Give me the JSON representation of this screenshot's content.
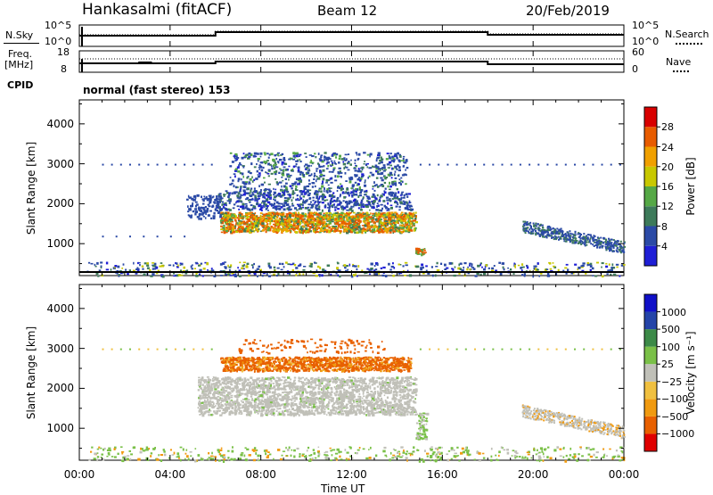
{
  "header": {
    "station": "Hankasalmi (fitACF)",
    "beam": "Beam 12",
    "date": "20/Feb/2019"
  },
  "panels": {
    "nsky": {
      "label": "N.Sky",
      "tick_top": "10^5",
      "tick_bottom": "10^0",
      "right_label": "N.Search",
      "right_tick_top": "10^5",
      "right_tick_bottom": "10^0"
    },
    "freq": {
      "label_1": "Freq.",
      "label_2": "[MHz]",
      "tick_top": "18",
      "tick_bottom": "8",
      "right_label": "Nave",
      "right_tick_top": "60",
      "right_tick_bottom": "0"
    },
    "cpid": {
      "label": "CPID",
      "value": "normal (fast stereo) 153"
    }
  },
  "colors": {
    "power": [
      "#1f1fd6",
      "#2b4aa6",
      "#3d7a5a",
      "#55a846",
      "#c8c800",
      "#f0a000",
      "#e85c00",
      "#d80000"
    ],
    "velocity": [
      "#e00000",
      "#e86000",
      "#f09a10",
      "#f0c040",
      "#c0c0b8",
      "#7ac048",
      "#3c8a48",
      "#2444a8",
      "#1010c8"
    ]
  },
  "chart_data": [
    {
      "type": "heatmap",
      "ylabel": "Slant Range [km]",
      "ylim": [
        200,
        4600
      ],
      "yticks": [
        "1000",
        "2000",
        "3000",
        "4000"
      ],
      "colorbar_label": "Power [dB]",
      "colorbar_ticks": [
        "4",
        "8",
        "12",
        "16",
        "20",
        "24",
        "28"
      ],
      "regions": [
        {
          "t": [
            6.2,
            14.8
          ],
          "r": [
            1250,
            1850
          ],
          "level": 6
        },
        {
          "t": [
            6.0,
            14.8
          ],
          "r": [
            1850,
            2300
          ],
          "level": 1
        },
        {
          "t": [
            6.5,
            14.5
          ],
          "r": [
            2300,
            3300
          ],
          "level": 1
        },
        {
          "t": [
            19.5,
            24.0
          ],
          "r": [
            800,
            1500
          ],
          "level": 1
        }
      ]
    },
    {
      "type": "heatmap",
      "ylabel": "Slant Range [km]",
      "ylim": [
        200,
        4600
      ],
      "yticks": [
        "1000",
        "2000",
        "3000",
        "4000"
      ],
      "colorbar_label": "Velocity [m s⁻¹]",
      "colorbar_ticks": [
        "1000",
        "500",
        "100",
        "25",
        "−25",
        "−100",
        "−500",
        "−1000"
      ],
      "regions": [
        {
          "t": [
            6.0,
            14.8
          ],
          "r": [
            2400,
            3300
          ],
          "level": "negative-orange"
        },
        {
          "t": [
            5.0,
            15.0
          ],
          "r": [
            1300,
            2300
          ],
          "level": "gray"
        },
        {
          "t": [
            19.5,
            24.0
          ],
          "r": [
            800,
            1500
          ],
          "level": "gray"
        }
      ]
    }
  ],
  "time_axis": {
    "ticks": [
      "00:00",
      "04:00",
      "08:00",
      "12:00",
      "16:00",
      "20:00",
      "00:00"
    ],
    "label": "Time UT"
  }
}
